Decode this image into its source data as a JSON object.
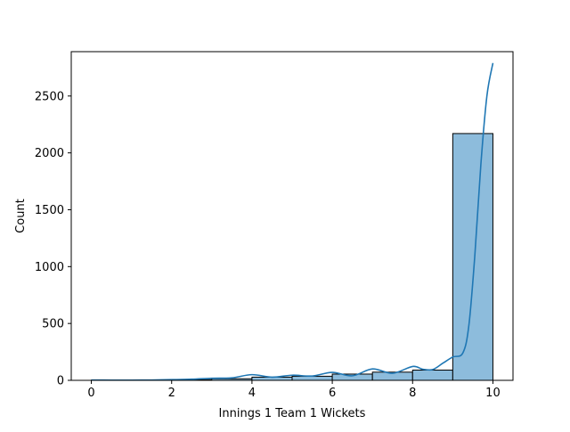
{
  "chart_data": {
    "type": "histogram",
    "title": "",
    "xlabel": "Innings 1 Team 1 Wickets",
    "ylabel": "Count",
    "xlim": [
      -0.5,
      10.5
    ],
    "ylim": [
      0,
      2890
    ],
    "xticks": [
      0,
      2,
      4,
      6,
      8,
      10
    ],
    "yticks": [
      0,
      500,
      1000,
      1500,
      2000,
      2500
    ],
    "grid": false,
    "legend": "none",
    "bins": [
      {
        "x0": 0,
        "x1": 1,
        "count": 2
      },
      {
        "x0": 1,
        "x1": 2,
        "count": 2
      },
      {
        "x0": 2,
        "x1": 3,
        "count": 6
      },
      {
        "x0": 3,
        "x1": 4,
        "count": 14
      },
      {
        "x0": 4,
        "x1": 5,
        "count": 28
      },
      {
        "x0": 5,
        "x1": 6,
        "count": 36
      },
      {
        "x0": 6,
        "x1": 7,
        "count": 55
      },
      {
        "x0": 7,
        "x1": 8,
        "count": 72
      },
      {
        "x0": 8,
        "x1": 9,
        "count": 90
      },
      {
        "x0": 9,
        "x1": 10,
        "count": 2170
      }
    ],
    "kde": {
      "x": [
        0,
        0.5,
        1,
        1.5,
        2,
        2.5,
        3,
        3.5,
        4,
        4.5,
        5,
        5.5,
        6,
        6.5,
        7,
        7.5,
        8,
        8.25,
        8.5,
        8.75,
        9,
        9.25,
        9.4,
        9.55,
        9.7,
        9.85,
        10
      ],
      "y": [
        3,
        2,
        2,
        3,
        6,
        10,
        18,
        22,
        50,
        28,
        45,
        38,
        70,
        40,
        100,
        62,
        122,
        98,
        95,
        150,
        205,
        240,
        480,
        1100,
        1900,
        2500,
        2790
      ]
    },
    "colors": {
      "bar_fill": "#8dbcdc",
      "bar_edge": "#000000",
      "kde_line": "#1f77b4"
    }
  }
}
